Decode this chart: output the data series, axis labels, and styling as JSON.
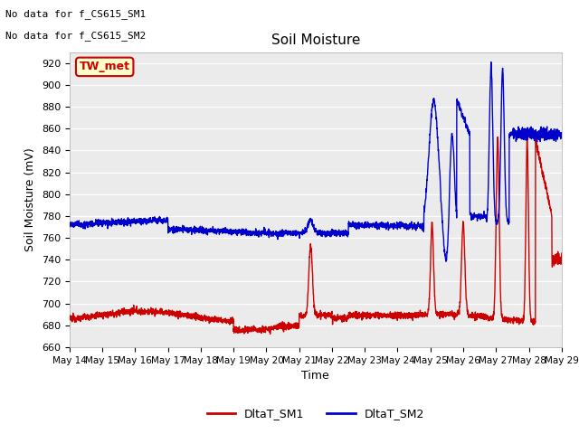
{
  "title": "Soil Moisture",
  "xlabel": "Time",
  "ylabel": "Soil Moisture (mV)",
  "ylim": [
    660,
    930
  ],
  "yticks": [
    660,
    680,
    700,
    720,
    740,
    760,
    780,
    800,
    820,
    840,
    860,
    880,
    900,
    920
  ],
  "fig_facecolor": "#ffffff",
  "axes_facecolor": "#ebebeb",
  "grid_color": "#ffffff",
  "text_above": [
    "No data for f_CS615_SM1",
    "No data for f_CS615_SM2"
  ],
  "legend_label1": "DltaT_SM1",
  "legend_label2": "DltaT_SM2",
  "color1": "#cc0000",
  "color2": "#0000cc",
  "box_label": "TW_met",
  "box_facecolor": "#ffffcc",
  "box_edgecolor": "#cc0000"
}
